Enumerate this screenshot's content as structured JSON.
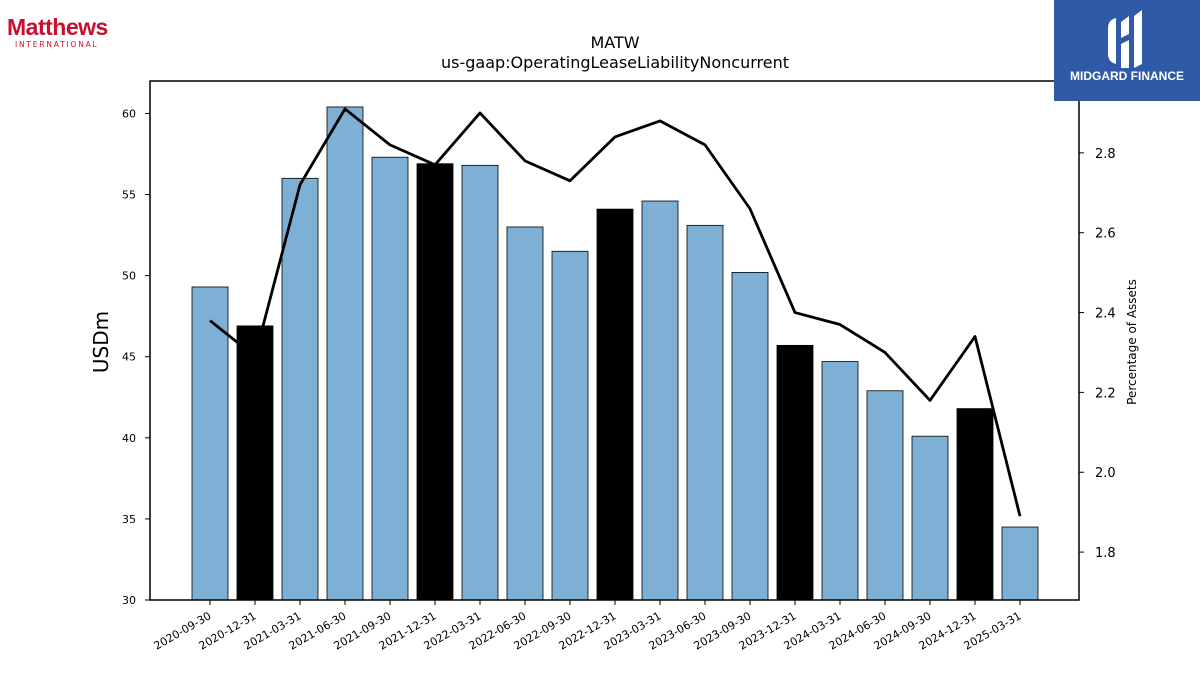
{
  "logos": {
    "left_brand": "Matthews",
    "left_sub": "INTERNATIONAL",
    "right_label": "MIDGARD FINANCE"
  },
  "colors": {
    "bar_quarter": "#7eb0d5",
    "bar_year_end": "#000000",
    "line": "#000000",
    "logo_red": "#c8102e",
    "logo_blue": "#2f5aa8"
  },
  "chart_data": {
    "type": "bar",
    "title": "MATW",
    "subtitle": "us-gaap:OperatingLeaseLiabilityNoncurrent",
    "ylabel": "USDm",
    "y2label": "Percentage of Assets",
    "ylim": [
      30,
      62
    ],
    "y2lim": [
      1.68,
      2.98
    ],
    "yticks": [
      30,
      35,
      40,
      45,
      50,
      55,
      60
    ],
    "y2ticks": [
      1.8,
      2.0,
      2.2,
      2.4,
      2.6,
      2.8
    ],
    "y2tick_labels": [
      "1.8",
      "2.0",
      "2.2",
      "2.4",
      "2.6",
      "2.8"
    ],
    "categories": [
      "2020-09-30",
      "2020-12-31",
      "2021-03-31",
      "2021-06-30",
      "2021-09-30",
      "2021-12-31",
      "2022-03-31",
      "2022-06-30",
      "2022-09-30",
      "2022-12-31",
      "2023-03-31",
      "2023-06-30",
      "2023-09-30",
      "2023-12-31",
      "2024-03-31",
      "2024-06-30",
      "2024-09-30",
      "2024-12-31",
      "2025-03-31"
    ],
    "values": [
      49.3,
      46.9,
      56.0,
      60.4,
      57.3,
      56.9,
      56.8,
      53.0,
      51.5,
      54.1,
      54.6,
      53.1,
      50.2,
      45.7,
      44.7,
      42.9,
      40.1,
      41.8,
      34.5
    ],
    "year_end": [
      false,
      true,
      false,
      false,
      false,
      true,
      false,
      false,
      false,
      true,
      false,
      false,
      false,
      true,
      false,
      false,
      false,
      true,
      false
    ],
    "line_series": {
      "axis": "secondary",
      "values": [
        2.38,
        2.29,
        2.72,
        2.91,
        2.82,
        2.77,
        2.9,
        2.78,
        2.73,
        2.84,
        2.88,
        2.82,
        2.66,
        2.4,
        2.37,
        2.3,
        2.18,
        2.34,
        1.89
      ]
    }
  }
}
